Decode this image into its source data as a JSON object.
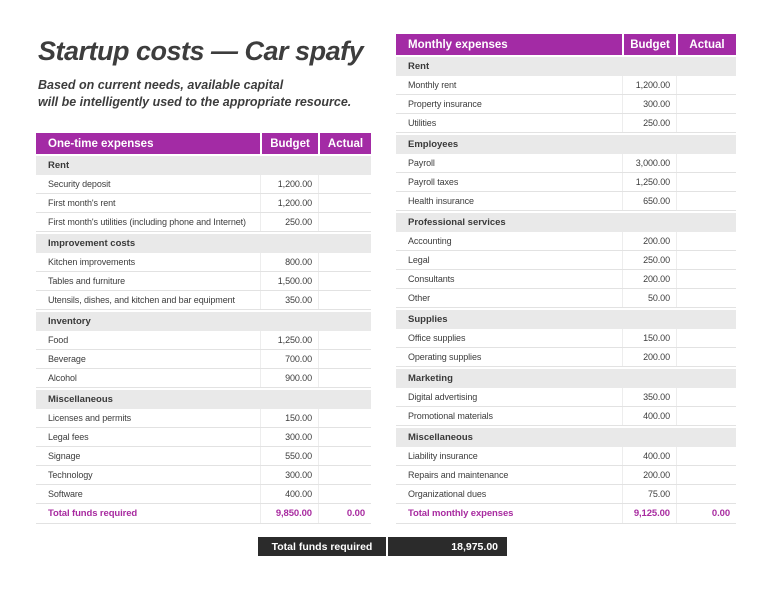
{
  "document": {
    "title": "Startup costs — Car spafy",
    "subtitle": [
      "Based on current needs, available capital",
      "will be intelligently used to the appropriate resource."
    ]
  },
  "colors": {
    "accent": "#A32BA5",
    "total_text": "#A82BA0",
    "summary_bg": "#2B2B2B",
    "section_bg": "#E9E9E9",
    "body_text": "#3D3D3D"
  },
  "tables": [
    {
      "title": "One-time expenses",
      "columns": [
        "Budget",
        "Actual"
      ],
      "sections": [
        {
          "name": "Rent",
          "rows": [
            {
              "label": "Security deposit",
              "budget": "1,200.00",
              "actual": ""
            },
            {
              "label": "First month's rent",
              "budget": "1,200.00",
              "actual": ""
            },
            {
              "label": "First month's utilities (including phone and Internet)",
              "budget": "250.00",
              "actual": ""
            }
          ]
        },
        {
          "name": "Improvement costs",
          "rows": [
            {
              "label": "Kitchen improvements",
              "budget": "800.00",
              "actual": ""
            },
            {
              "label": "Tables and furniture",
              "budget": "1,500.00",
              "actual": ""
            },
            {
              "label": "Utensils, dishes, and kitchen and bar equipment",
              "budget": "350.00",
              "actual": ""
            }
          ]
        },
        {
          "name": "Inventory",
          "rows": [
            {
              "label": "Food",
              "budget": "1,250.00",
              "actual": ""
            },
            {
              "label": "Beverage",
              "budget": "700.00",
              "actual": ""
            },
            {
              "label": "Alcohol",
              "budget": "900.00",
              "actual": ""
            }
          ]
        },
        {
          "name": "Miscellaneous",
          "rows": [
            {
              "label": "Licenses and permits",
              "budget": "150.00",
              "actual": ""
            },
            {
              "label": "Legal fees",
              "budget": "300.00",
              "actual": ""
            },
            {
              "label": "Signage",
              "budget": "550.00",
              "actual": ""
            },
            {
              "label": "Technology",
              "budget": "300.00",
              "actual": ""
            },
            {
              "label": "Software",
              "budget": "400.00",
              "actual": ""
            }
          ]
        }
      ],
      "total": {
        "label": "Total funds required",
        "budget": "9,850.00",
        "actual": "0.00"
      }
    },
    {
      "title": "Monthly expenses",
      "columns": [
        "Budget",
        "Actual"
      ],
      "sections": [
        {
          "name": "Rent",
          "rows": [
            {
              "label": "Monthly rent",
              "budget": "1,200.00",
              "actual": ""
            },
            {
              "label": "Property insurance",
              "budget": "300.00",
              "actual": ""
            },
            {
              "label": "Utilities",
              "budget": "250.00",
              "actual": ""
            }
          ]
        },
        {
          "name": "Employees",
          "rows": [
            {
              "label": "Payroll",
              "budget": "3,000.00",
              "actual": ""
            },
            {
              "label": "Payroll taxes",
              "budget": "1,250.00",
              "actual": ""
            },
            {
              "label": "Health insurance",
              "budget": "650.00",
              "actual": ""
            }
          ]
        },
        {
          "name": "Professional services",
          "rows": [
            {
              "label": "Accounting",
              "budget": "200.00",
              "actual": ""
            },
            {
              "label": "Legal",
              "budget": "250.00",
              "actual": ""
            },
            {
              "label": "Consultants",
              "budget": "200.00",
              "actual": ""
            },
            {
              "label": "Other",
              "budget": "50.00",
              "actual": ""
            }
          ]
        },
        {
          "name": "Supplies",
          "rows": [
            {
              "label": "Office supplies",
              "budget": "150.00",
              "actual": ""
            },
            {
              "label": "Operating supplies",
              "budget": "200.00",
              "actual": ""
            }
          ]
        },
        {
          "name": "Marketing",
          "rows": [
            {
              "label": "Digital advertising",
              "budget": "350.00",
              "actual": ""
            },
            {
              "label": "Promotional materials",
              "budget": "400.00",
              "actual": ""
            }
          ]
        },
        {
          "name": "Miscellaneous",
          "rows": [
            {
              "label": "Liability insurance",
              "budget": "400.00",
              "actual": ""
            },
            {
              "label": "Repairs and maintenance",
              "budget": "200.00",
              "actual": ""
            },
            {
              "label": "Organizational dues",
              "budget": "75.00",
              "actual": ""
            }
          ]
        }
      ],
      "total": {
        "label": "Total monthly expenses",
        "budget": "9,125.00",
        "actual": "0.00"
      }
    }
  ],
  "summary": {
    "label": "Total funds required",
    "value": "18,975.00"
  }
}
